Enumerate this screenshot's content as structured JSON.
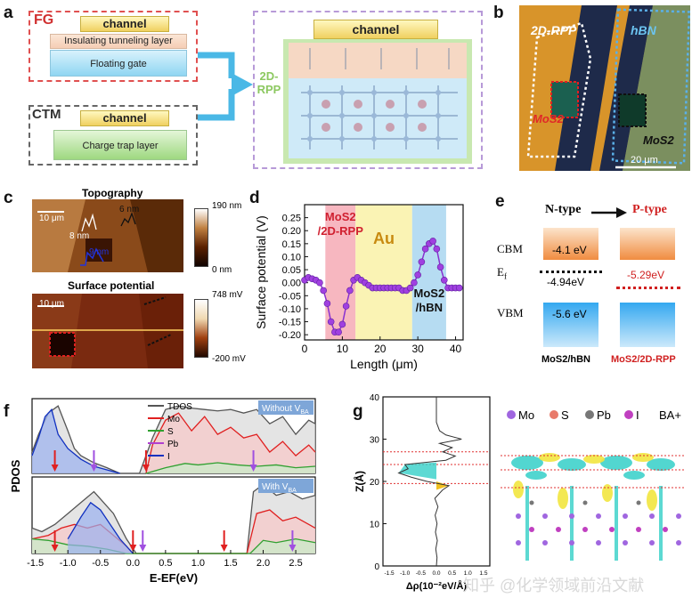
{
  "panels": {
    "a": "a",
    "b": "b",
    "c": "c",
    "d": "d",
    "e": "e",
    "f": "f",
    "g": "g"
  },
  "panel_a": {
    "fg_label": "FG",
    "ctm_label": "CTM",
    "channel": "channel",
    "tunneling": "Insulating tunneling layer",
    "floating": "Floating gate",
    "trap": "Charge trap layer",
    "rpp_label": "2D-\nRPP",
    "channel_right": "channel"
  },
  "panel_b": {
    "rpp": "2D-RPP",
    "hbn": "hBN",
    "mos2_left": "MoS2",
    "mos2_right": "MoS2",
    "scale": "20 μm"
  },
  "panel_c": {
    "topo_title": "Topography",
    "surf_title": "Surface potential",
    "scale1": "10 μm",
    "scale2": "10 μm",
    "h1": "8 nm",
    "h2": "6 nm",
    "h3": "9 nm",
    "cb1_max": "190 nm",
    "cb1_min": "0 nm",
    "cb2_max": "748 mV",
    "cb2_min": "-200 mV"
  },
  "panel_e": {
    "ntype": "N-type",
    "ptype": "P-type",
    "cbm": "CBM",
    "ef": "E",
    "ef_sub": "f",
    "vbm": "VBM",
    "cbm_val": "-4.1 eV",
    "ef_n": "-4.94eV",
    "ef_p": "-5.29eV",
    "vbm_val": "-5.6 eV",
    "left_sample": "MoS2/hBN",
    "right_sample": "MoS2/2D-RPP"
  },
  "panel_g": {
    "legend": [
      "Mo",
      "S",
      "Pb",
      "I",
      "BA+"
    ],
    "legend_colors": [
      "#a066e0",
      "#e87a6a",
      "#777777",
      "#c040c0",
      "#d9a066"
    ],
    "watermark": "知乎 @化学领域前沿文献"
  },
  "chart_data": [
    {
      "panel": "d",
      "type": "line",
      "xlabel": "Length (μm)",
      "ylabel": "Surface potential (V)",
      "xlim": [
        0,
        42
      ],
      "ylim": [
        -0.22,
        0.3
      ],
      "xticks": [
        0,
        10,
        20,
        30,
        40
      ],
      "yticks": [
        -0.2,
        -0.15,
        -0.1,
        -0.05,
        0.0,
        0.05,
        0.1,
        0.15,
        0.2,
        0.25
      ],
      "region_labels": {
        "left": "MoS2\n/2D-RPP",
        "middle": "Au",
        "right": "MoS2\n/hBN"
      },
      "regions": [
        {
          "x0": 5.5,
          "x1": 13.5,
          "color": "#f7b7c0"
        },
        {
          "x0": 13.5,
          "x1": 28.5,
          "color": "#faf3b4"
        },
        {
          "x0": 28.5,
          "x1": 37.5,
          "color": "#b6dcf2"
        }
      ],
      "x": [
        0,
        1,
        2,
        3,
        4,
        5,
        6,
        7,
        8,
        9,
        10,
        11,
        12,
        13,
        14,
        15,
        16,
        17,
        18,
        19,
        20,
        21,
        22,
        23,
        24,
        25,
        26,
        27,
        28,
        29,
        30,
        31,
        32,
        33,
        34,
        35,
        36,
        37,
        38,
        39,
        40,
        41
      ],
      "y": [
        0.01,
        0.02,
        0.015,
        0.01,
        0.0,
        -0.03,
        -0.08,
        -0.15,
        -0.19,
        -0.19,
        -0.16,
        -0.09,
        -0.03,
        0.01,
        0.02,
        0.01,
        0.0,
        -0.01,
        -0.02,
        -0.02,
        -0.02,
        -0.02,
        -0.02,
        -0.02,
        -0.02,
        -0.02,
        -0.03,
        -0.03,
        -0.02,
        0.0,
        0.03,
        0.08,
        0.13,
        0.15,
        0.16,
        0.13,
        0.06,
        0.01,
        -0.02,
        -0.02,
        -0.02,
        -0.02
      ]
    },
    {
      "panel": "f",
      "type": "area",
      "xlabel": "E-EF(eV)",
      "ylabel": "PDOS",
      "xlim": [
        -1.55,
        2.8
      ],
      "xticks": [
        -1.5,
        -1.0,
        -0.5,
        0.0,
        0.5,
        1.0,
        1.5,
        2.0,
        2.5
      ],
      "legend": [
        "TDOS",
        "Mo",
        "S",
        "Pb",
        "I"
      ],
      "legend_colors": [
        "#555555",
        "#e02020",
        "#30a030",
        "#b040d0",
        "#1030c0"
      ],
      "subplot_labels": [
        "Without V",
        "With V"
      ],
      "subplot_sub": "BA",
      "series_top": [
        {
          "name": "TDOS",
          "x": [
            -1.55,
            -1.45,
            -1.3,
            -1.15,
            -1.0,
            -0.9,
            -0.8,
            -0.6,
            -0.4,
            -0.2,
            0.1,
            0.3,
            0.5,
            0.7,
            0.9,
            1.1,
            1.3,
            1.5,
            1.7,
            1.9,
            2.1,
            2.3,
            2.5,
            2.7,
            2.8
          ],
          "y": [
            0.3,
            0.55,
            0.85,
            0.95,
            0.6,
            0.35,
            0.25,
            0.15,
            0.08,
            0.0,
            0.0,
            0.5,
            0.9,
            0.95,
            0.92,
            0.9,
            0.88,
            0.9,
            0.85,
            0.9,
            0.7,
            0.8,
            0.55,
            0.75,
            0.7
          ]
        },
        {
          "name": "Mo",
          "x": [
            0.2,
            0.3,
            0.5,
            0.7,
            0.9,
            1.1,
            1.3,
            1.5,
            1.7,
            1.9,
            2.1,
            2.3,
            2.5,
            2.7,
            2.8
          ],
          "y": [
            0.0,
            0.4,
            0.75,
            0.85,
            0.6,
            0.8,
            0.55,
            0.65,
            0.5,
            0.55,
            0.3,
            0.45,
            0.25,
            0.4,
            0.3
          ]
        },
        {
          "name": "S",
          "x": [
            0.2,
            0.5,
            0.8,
            1.0,
            1.3,
            1.6,
            1.9,
            2.2,
            2.5,
            2.8
          ],
          "y": [
            0.0,
            0.08,
            0.14,
            0.12,
            0.15,
            0.12,
            0.1,
            0.12,
            0.08,
            0.1
          ]
        },
        {
          "name": "I",
          "x": [
            -1.55,
            -1.45,
            -1.35,
            -1.25,
            -1.15,
            -1.0,
            -0.8,
            -0.6,
            -0.4,
            -0.2
          ],
          "y": [
            0.25,
            0.5,
            0.8,
            0.9,
            0.55,
            0.35,
            0.2,
            0.1,
            0.05,
            0.0
          ]
        }
      ],
      "series_bottom": [
        {
          "name": "TDOS",
          "x": [
            -1.55,
            -1.4,
            -1.2,
            -1.0,
            -0.8,
            -0.6,
            -0.5,
            -0.3,
            -0.1,
            0.05,
            1.75,
            1.85,
            2.0,
            2.2,
            2.4,
            2.6,
            2.8
          ],
          "y": [
            0.35,
            0.3,
            0.4,
            0.55,
            0.7,
            0.85,
            0.75,
            0.55,
            0.2,
            0.0,
            0.0,
            0.85,
            0.95,
            0.8,
            0.85,
            0.75,
            0.8
          ]
        },
        {
          "name": "Mo",
          "x": [
            -1.55,
            -1.3,
            -1.1,
            -0.9,
            -0.7,
            -0.5,
            -0.3,
            -0.1,
            0.0,
            1.75,
            1.9,
            2.1,
            2.3,
            2.5,
            2.7,
            2.8
          ],
          "y": [
            0.2,
            0.25,
            0.35,
            0.4,
            0.35,
            0.4,
            0.25,
            0.1,
            0.0,
            0.0,
            0.55,
            0.6,
            0.45,
            0.5,
            0.4,
            0.35
          ]
        },
        {
          "name": "S",
          "x": [
            -1.55,
            -1.3,
            -1.0,
            -0.7,
            -0.4,
            -0.1,
            1.8,
            2.0,
            2.2,
            2.5,
            2.8
          ],
          "y": [
            0.2,
            0.18,
            0.12,
            0.1,
            0.06,
            0.0,
            0.0,
            0.18,
            0.15,
            0.2,
            0.15
          ]
        },
        {
          "name": "I",
          "x": [
            -1.0,
            -0.8,
            -0.65,
            -0.5,
            -0.35,
            -0.2,
            0.0
          ],
          "y": [
            0.2,
            0.5,
            0.7,
            0.6,
            0.4,
            0.2,
            0.0
          ]
        }
      ],
      "arrows_top": [
        {
          "x": -1.2,
          "color": "red"
        },
        {
          "x": -0.6,
          "color": "purple"
        },
        {
          "x": 0.2,
          "color": "red"
        },
        {
          "x": 1.85,
          "color": "purple"
        }
      ],
      "arrows_bottom": [
        {
          "x": -1.2,
          "color": "red"
        },
        {
          "x": 0.0,
          "color": "red"
        },
        {
          "x": 0.15,
          "color": "purple"
        },
        {
          "x": 1.4,
          "color": "red"
        },
        {
          "x": 2.45,
          "color": "purple"
        }
      ]
    },
    {
      "panel": "g",
      "type": "line",
      "xlabel": "Δρ(10⁻²eV/Å)",
      "ylabel": "Z(Å)",
      "xlim": [
        -1.7,
        1.7
      ],
      "ylim": [
        0,
        40
      ],
      "xticks_labels": [
        "-1.5",
        "-1.0",
        "-0.5",
        "0.0",
        "0.5",
        "1.0",
        "1.5"
      ],
      "yticks": [
        0,
        10,
        20,
        30,
        40
      ],
      "z": [
        0,
        2,
        4,
        6,
        8,
        10,
        12,
        14,
        16,
        18,
        19,
        20,
        21,
        22,
        23,
        24,
        25,
        26,
        27,
        28,
        29,
        30,
        31,
        32,
        34,
        36,
        38,
        40
      ],
      "drho": [
        0,
        0.02,
        -0.02,
        0.03,
        -0.03,
        0.02,
        -0.04,
        0.05,
        -0.05,
        0.2,
        0.4,
        -0.3,
        -0.8,
        -1.2,
        -0.9,
        -1.0,
        0.3,
        0.6,
        0.2,
        0.5,
        0.1,
        0.8,
        0.3,
        0.1,
        0,
        0,
        0,
        0
      ],
      "dashed_lines_z": [
        19.5,
        24,
        27
      ]
    }
  ]
}
